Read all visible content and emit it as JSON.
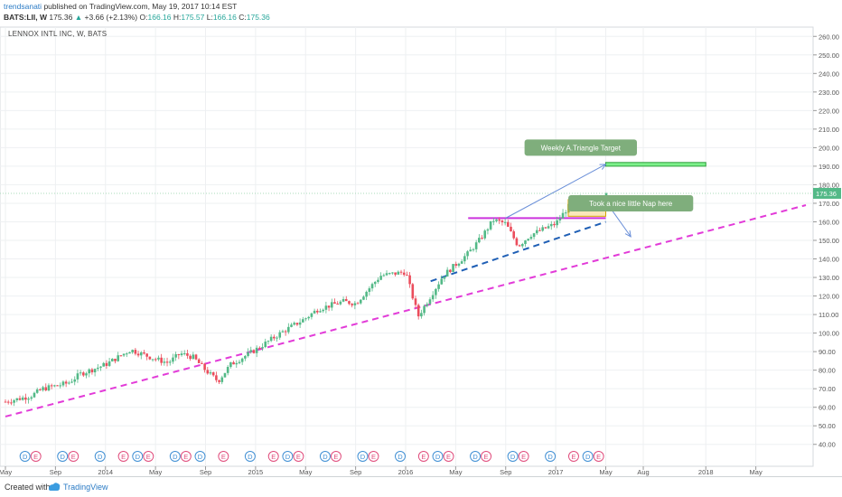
{
  "header": {
    "author": "trendsanati",
    "published": "published on TradingView.com, May 19, 2017 10:14 EST",
    "symbol": "BATS:LII, W",
    "last": "175.36",
    "change_arrow": "▲",
    "change": "+3.66 (+2.13%)",
    "o_label": "O:",
    "o": "166.16",
    "h_label": "H:",
    "h": "175.57",
    "l_label": "L:",
    "l": "166.16",
    "c_label": "C:",
    "c": "175.36"
  },
  "chart_title": "LENNOX INTL INC, W, BATS",
  "footer": {
    "created": "Created with",
    "brand": "TradingView"
  },
  "colors": {
    "up": "#53b987",
    "down": "#eb4d5c",
    "support": "#e23bd8",
    "trend": "#1f5fb5",
    "resistance": "#cc33dd",
    "target_box": "#7cf08a",
    "arrow": "#6a8fd8",
    "callout": "#7fae7c"
  },
  "chart_data": {
    "type": "candlestick",
    "title": "LENNOX INTL INC, W, BATS",
    "ylim": [
      35,
      265
    ],
    "y_ticks": [
      40,
      50,
      60,
      70,
      80,
      90,
      100,
      110,
      120,
      130,
      140,
      150,
      160,
      170,
      180,
      190,
      200,
      210,
      220,
      230,
      240,
      250,
      260
    ],
    "y_tick_labels": [
      "40.00",
      "50.00",
      "60.00",
      "70.00",
      "80.00",
      "90.00",
      "100.00",
      "110.00",
      "120.00",
      "130.00",
      "140.00",
      "150.00",
      "160.00",
      "170.00",
      "180.00",
      "190.00",
      "200.00",
      "210.00",
      "220.00",
      "230.00",
      "240.00",
      "250.00",
      "260.00"
    ],
    "x_range": [
      "2013-05",
      "2018-09"
    ],
    "x_ticks": [
      {
        "date": "2013-05",
        "label": "May"
      },
      {
        "date": "2013-09",
        "label": "Sep"
      },
      {
        "date": "2014-01",
        "label": "2014"
      },
      {
        "date": "2014-05",
        "label": "May"
      },
      {
        "date": "2014-09",
        "label": "Sep"
      },
      {
        "date": "2015-01",
        "label": "2015"
      },
      {
        "date": "2015-05",
        "label": "May"
      },
      {
        "date": "2015-09",
        "label": "Sep"
      },
      {
        "date": "2016-01",
        "label": "2016"
      },
      {
        "date": "2016-05",
        "label": "May"
      },
      {
        "date": "2016-09",
        "label": "Sep"
      },
      {
        "date": "2017-01",
        "label": "2017"
      },
      {
        "date": "2017-05",
        "label": "May"
      },
      {
        "date": "2017-08",
        "label": "Aug"
      },
      {
        "date": "2018-01",
        "label": "2018"
      },
      {
        "date": "2018-05",
        "label": "May"
      }
    ],
    "last_price": 175.36,
    "last_price_label": "175.36",
    "price_path": [
      [
        "2013-05",
        63
      ],
      [
        "2013-07",
        66
      ],
      [
        "2013-08",
        70
      ],
      [
        "2013-10",
        73
      ],
      [
        "2013-11",
        78
      ],
      [
        "2014-01",
        83
      ],
      [
        "2014-03",
        91
      ],
      [
        "2014-05",
        86
      ],
      [
        "2014-06",
        84
      ],
      [
        "2014-07",
        89
      ],
      [
        "2014-08",
        87
      ],
      [
        "2014-09",
        80
      ],
      [
        "2014-10",
        74
      ],
      [
        "2014-11",
        83
      ],
      [
        "2015-01",
        91
      ],
      [
        "2015-03",
        100
      ],
      [
        "2015-05",
        108
      ],
      [
        "2015-06",
        113
      ],
      [
        "2015-08",
        117
      ],
      [
        "2015-09",
        116
      ],
      [
        "2015-11",
        131
      ],
      [
        "2016-01",
        133
      ],
      [
        "2016-02",
        109
      ],
      [
        "2016-04",
        131
      ],
      [
        "2016-06",
        143
      ],
      [
        "2016-07",
        151
      ],
      [
        "2016-08",
        161
      ],
      [
        "2016-09",
        159
      ],
      [
        "2016-10",
        147
      ],
      [
        "2016-11",
        153
      ],
      [
        "2017-01",
        159
      ],
      [
        "2017-02",
        168
      ],
      [
        "2017-03",
        172
      ],
      [
        "2017-04",
        169
      ],
      [
        "2017-05",
        175
      ]
    ],
    "annotations": [
      {
        "type": "line",
        "name": "long-term-support",
        "from": [
          "2013-05",
          55
        ],
        "to": [
          "2018-09",
          169
        ],
        "style": "dashed",
        "color": "#e23bd8"
      },
      {
        "type": "line",
        "name": "rising-trendline",
        "from": [
          "2016-03",
          128
        ],
        "to": [
          "2017-05",
          160
        ],
        "style": "dashed",
        "color": "#1f5fb5"
      },
      {
        "type": "line",
        "name": "resistance",
        "from": [
          "2016-06",
          162
        ],
        "to": [
          "2017-05",
          162
        ],
        "style": "solid",
        "color": "#cc33dd"
      },
      {
        "type": "rect",
        "name": "nap-consolidation",
        "from": [
          "2017-02",
          163
        ],
        "to": [
          "2017-05",
          172
        ]
      },
      {
        "type": "rect",
        "name": "triangle-target",
        "from": [
          "2017-05",
          190
        ],
        "to": [
          "2018-01",
          192
        ]
      },
      {
        "type": "arrow",
        "name": "up-target-arrow",
        "from": [
          "2016-09",
          162
        ],
        "to": [
          "2017-05",
          191
        ]
      },
      {
        "type": "arrow",
        "name": "down-projection-arrow",
        "from": [
          "2017-05",
          171
        ],
        "to": [
          "2017-07",
          152
        ]
      },
      {
        "type": "callout",
        "name": "target-callout",
        "text": "Weekly A.Triangle Target",
        "at": [
          "2017-03",
          200
        ]
      },
      {
        "type": "callout",
        "name": "nap-callout",
        "text": "Took a nice little Nap here",
        "at": [
          "2017-07",
          170
        ]
      }
    ],
    "earnings_dividend_markers": [
      {
        "date": "2013-07",
        "type": "D"
      },
      {
        "date": "2013-07",
        "type": "E"
      },
      {
        "date": "2013-10",
        "type": "D"
      },
      {
        "date": "2013-10",
        "type": "E"
      },
      {
        "date": "2014-01",
        "type": "D"
      },
      {
        "date": "2014-02",
        "type": "E"
      },
      {
        "date": "2014-04",
        "type": "D"
      },
      {
        "date": "2014-04",
        "type": "E"
      },
      {
        "date": "2014-07",
        "type": "D"
      },
      {
        "date": "2014-07",
        "type": "E"
      },
      {
        "date": "2014-09",
        "type": "D"
      },
      {
        "date": "2014-10",
        "type": "E"
      },
      {
        "date": "2015-01",
        "type": "D"
      },
      {
        "date": "2015-02",
        "type": "E"
      },
      {
        "date": "2015-04",
        "type": "D"
      },
      {
        "date": "2015-04",
        "type": "E"
      },
      {
        "date": "2015-07",
        "type": "D"
      },
      {
        "date": "2015-07",
        "type": "E"
      },
      {
        "date": "2015-10",
        "type": "D"
      },
      {
        "date": "2015-10",
        "type": "E"
      },
      {
        "date": "2016-01",
        "type": "D"
      },
      {
        "date": "2016-02",
        "type": "E"
      },
      {
        "date": "2016-04",
        "type": "D"
      },
      {
        "date": "2016-04",
        "type": "E"
      },
      {
        "date": "2016-07",
        "type": "D"
      },
      {
        "date": "2016-07",
        "type": "E"
      },
      {
        "date": "2016-10",
        "type": "D"
      },
      {
        "date": "2016-10",
        "type": "E"
      },
      {
        "date": "2017-01",
        "type": "D"
      },
      {
        "date": "2017-02",
        "type": "E"
      },
      {
        "date": "2017-04",
        "type": "D"
      },
      {
        "date": "2017-04",
        "type": "E"
      }
    ]
  }
}
